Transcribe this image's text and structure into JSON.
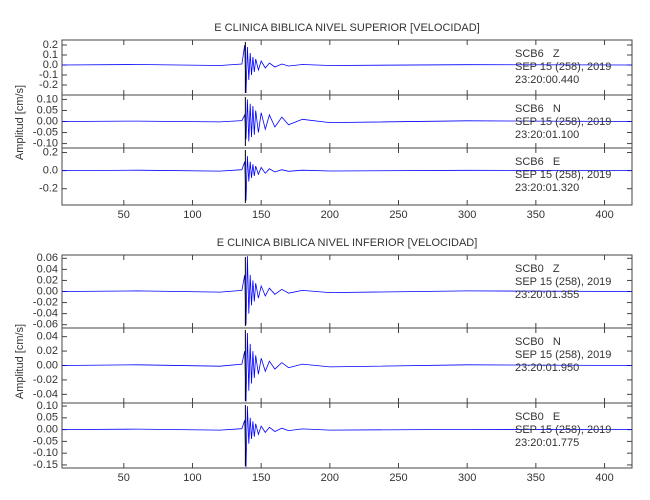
{
  "chart_data": [
    {
      "type": "line",
      "title": "E CLINICA BIBLICA NIVEL SUPERIOR [VELOCIDAD]",
      "y_label": "Amplitud [cm/s]",
      "xlim": [
        5,
        420
      ],
      "xticks": [
        50,
        100,
        150,
        200,
        250,
        300,
        350,
        400
      ],
      "pick_x": 138.5,
      "x": [
        5,
        60,
        120,
        136,
        138,
        139,
        140,
        141,
        142,
        143,
        144,
        145,
        146,
        148,
        150,
        153,
        156,
        160,
        165,
        170,
        180,
        200,
        300,
        420
      ],
      "panels": [
        {
          "label": "SCB6   Z",
          "date": "SEP 15 (258), 2019",
          "time": "23:20:00.440",
          "color": "#0000ff",
          "ylim": [
            -0.3,
            0.25
          ],
          "yticks": [
            {
              "value": 0.2,
              "label": "0.2"
            },
            {
              "value": 0.1,
              "label": "0.1"
            },
            {
              "value": 0,
              "label": "0.0"
            },
            {
              "value": -0.1,
              "label": "-0.1"
            },
            {
              "value": -0.2,
              "label": "-0.2"
            }
          ],
          "values": [
            0,
            0.005,
            -0.005,
            0.01,
            0.2,
            -0.28,
            0.18,
            -0.15,
            0.12,
            -0.1,
            0.08,
            -0.07,
            0.06,
            -0.05,
            0.04,
            -0.03,
            0.02,
            -0.02,
            0.01,
            -0.01,
            0.005,
            -0.005,
            0.003,
            0
          ]
        },
        {
          "label": "SCB6   N",
          "date": "SEP 15 (258), 2019",
          "time": "23:20:01.100",
          "color": "#0000ff",
          "ylim": [
            -0.12,
            0.12
          ],
          "yticks": [
            {
              "value": 0.1,
              "label": "0.10"
            },
            {
              "value": 0.05,
              "label": "0.05"
            },
            {
              "value": 0,
              "label": "0.00"
            },
            {
              "value": -0.05,
              "label": "-0.05"
            },
            {
              "value": -0.1,
              "label": "-0.10"
            }
          ],
          "values": [
            0,
            0.002,
            -0.002,
            0.004,
            0.03,
            -0.08,
            0.1,
            -0.09,
            0.08,
            -0.07,
            0.07,
            -0.06,
            0.05,
            -0.05,
            0.04,
            -0.035,
            0.03,
            -0.025,
            0.02,
            -0.015,
            0.01,
            -0.005,
            0.003,
            0
          ]
        },
        {
          "label": "SCB6   E",
          "date": "SEP 15 (258), 2019",
          "time": "23:20:01.320",
          "color": "#0000ff",
          "ylim": [
            -0.38,
            0.25
          ],
          "yticks": [
            {
              "value": 0.2,
              "label": "0.2"
            },
            {
              "value": 0,
              "label": "0.0"
            },
            {
              "value": -0.2,
              "label": "-0.2"
            }
          ],
          "values": [
            0,
            0.005,
            -0.005,
            0.01,
            0.1,
            -0.33,
            0.16,
            -0.12,
            0.1,
            -0.08,
            0.07,
            -0.06,
            0.05,
            -0.04,
            0.035,
            -0.03,
            0.02,
            -0.015,
            0.01,
            -0.008,
            0.005,
            -0.004,
            0.003,
            0
          ]
        }
      ]
    },
    {
      "type": "line",
      "title": "E CLINICA BIBLICA NIVEL INFERIOR [VELOCIDAD]",
      "y_label": "Amplitud [cm/s]",
      "xlim": [
        5,
        420
      ],
      "xticks": [
        50,
        100,
        150,
        200,
        250,
        300,
        350,
        400
      ],
      "pick_x": 138.5,
      "x": [
        5,
        60,
        120,
        136,
        138,
        139,
        140,
        141,
        142,
        143,
        144,
        145,
        146,
        148,
        150,
        153,
        156,
        160,
        165,
        170,
        180,
        200,
        300,
        420
      ],
      "panels": [
        {
          "label": "SCB0   Z",
          "date": "SEP 15 (258), 2019",
          "time": "23:20:01.355",
          "color": "#0000ff",
          "ylim": [
            -0.066,
            0.066
          ],
          "yticks": [
            {
              "value": 0.06,
              "label": "0.06"
            },
            {
              "value": 0.04,
              "label": "0.04"
            },
            {
              "value": 0.02,
              "label": "0.02"
            },
            {
              "value": 0,
              "label": "0.00"
            },
            {
              "value": -0.02,
              "label": "-0.02"
            },
            {
              "value": -0.04,
              "label": "-0.04"
            },
            {
              "value": -0.06,
              "label": "-0.06"
            }
          ],
          "values": [
            0,
            0.001,
            -0.001,
            0.002,
            0.03,
            -0.06,
            0.064,
            -0.04,
            0.03,
            -0.025,
            0.02,
            -0.018,
            0.015,
            -0.012,
            0.01,
            -0.008,
            0.006,
            -0.005,
            0.004,
            -0.003,
            0.002,
            -0.002,
            0.001,
            0
          ]
        },
        {
          "label": "SCB0   N",
          "date": "SEP 15 (258), 2019",
          "time": "23:20:01.950",
          "color": "#0000ff",
          "ylim": [
            -0.052,
            0.052
          ],
          "yticks": [
            {
              "value": 0.04,
              "label": "0.04"
            },
            {
              "value": 0.02,
              "label": "0.02"
            },
            {
              "value": 0,
              "label": "0.00"
            },
            {
              "value": -0.02,
              "label": "-0.02"
            },
            {
              "value": -0.04,
              "label": "-0.04"
            }
          ],
          "values": [
            0,
            0.001,
            -0.001,
            0.002,
            0.02,
            -0.05,
            0.045,
            -0.035,
            0.03,
            -0.025,
            0.02,
            -0.017,
            0.014,
            -0.012,
            0.01,
            -0.008,
            0.006,
            -0.005,
            0.004,
            -0.003,
            0.002,
            -0.002,
            0.001,
            0
          ]
        },
        {
          "label": "SCB0   E",
          "date": "SEP 15 (258), 2019",
          "time": "23:20:01.775",
          "color": "#0000ff",
          "ylim": [
            -0.163,
            0.113
          ],
          "yticks": [
            {
              "value": 0.1,
              "label": "0.10"
            },
            {
              "value": 0.05,
              "label": "0.05"
            },
            {
              "value": 0,
              "label": "0.00"
            },
            {
              "value": -0.05,
              "label": "-0.05"
            },
            {
              "value": -0.1,
              "label": "-0.10"
            },
            {
              "value": -0.15,
              "label": "-0.15"
            }
          ],
          "values": [
            0,
            0.002,
            -0.002,
            0.004,
            0.04,
            -0.16,
            0.1,
            -0.06,
            0.05,
            -0.04,
            0.035,
            -0.03,
            0.025,
            -0.02,
            0.015,
            -0.012,
            0.01,
            -0.008,
            0.006,
            -0.004,
            0.003,
            -0.002,
            0.001,
            0
          ]
        }
      ]
    }
  ]
}
